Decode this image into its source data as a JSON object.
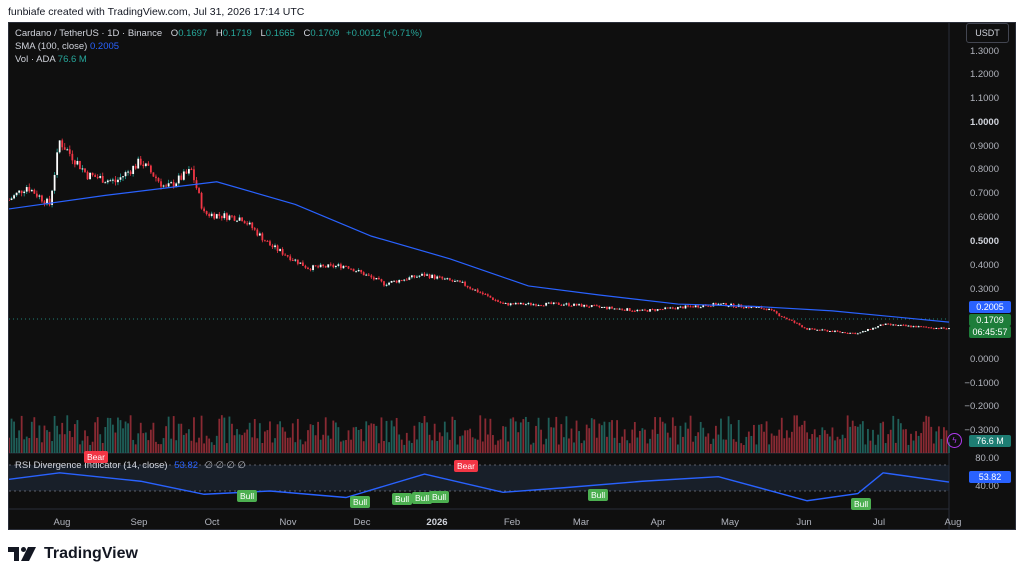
{
  "header": {
    "text": "funbiafe created with TradingView.com, Jul 31, 2026 17:14 UTC"
  },
  "legend": {
    "symbol": "Cardano / TetherUS · 1D · Binance",
    "open_label": "O",
    "open": "0.1697",
    "high_label": "H",
    "high": "0.1719",
    "low_label": "L",
    "low": "0.1665",
    "close_label": "C",
    "close": "0.1709",
    "change": "+0.0012 (+0.71%)",
    "sma_label": "SMA (100, close)",
    "sma_value": "0.2005",
    "vol_label": "Vol · ADA",
    "vol_value": "76.6 M"
  },
  "currency_button": "USDT",
  "price_axis": [
    "1.3000",
    "1.2000",
    "1.1000",
    "1.0000",
    "0.9000",
    "0.8000",
    "0.7000",
    "0.6000",
    "0.5000",
    "0.4000",
    "0.3000",
    "0.0000",
    "−0.1000",
    "−0.2000",
    "−0.3000"
  ],
  "price_labels": {
    "sma": "0.2005",
    "last_price": "0.1709",
    "countdown": "06:45:57",
    "volume": "76.6 M"
  },
  "rsi": {
    "label": "RSI Divergence Indicator (14, close)",
    "value": "53.82",
    "na": "∅ ∅ ∅ ∅",
    "axis": [
      "80.00",
      "40.00"
    ],
    "current": "53.82"
  },
  "x_axis": [
    "Aug",
    "Sep",
    "Oct",
    "Nov",
    "Dec",
    "2026",
    "Feb",
    "Mar",
    "Apr",
    "May",
    "Jun",
    "Jul",
    "Aug"
  ],
  "divergences": [
    {
      "type": "bear",
      "text": "Bear"
    },
    {
      "type": "bull",
      "text": "Bull"
    },
    {
      "type": "bull",
      "text": "Bull"
    },
    {
      "type": "bull",
      "text": "Bull"
    },
    {
      "type": "bull",
      "text": "Bull"
    },
    {
      "type": "bull",
      "text": "Bull"
    },
    {
      "type": "bear",
      "text": "Bear"
    },
    {
      "type": "bull",
      "text": "Bull"
    },
    {
      "type": "bull",
      "text": "Bull"
    }
  ],
  "brand": "TradingView",
  "colors": {
    "up": "#26a69a",
    "down": "#f23645",
    "sma": "#2962ff",
    "rsi": "#2962ff",
    "bg": "#0f0f0f"
  },
  "chart_data": {
    "type": "candlestick",
    "symbol": "ADAUSDT",
    "interval": "1D",
    "x_range": [
      "2025-07-25",
      "2026-07-31"
    ],
    "price_close_approx": [
      {
        "date": "2025-07-25",
        "close": 0.74
      },
      {
        "date": "2025-08-01",
        "close": 0.8
      },
      {
        "date": "2025-08-10",
        "close": 0.72
      },
      {
        "date": "2025-08-14",
        "close": 1.0
      },
      {
        "date": "2025-08-25",
        "close": 0.85
      },
      {
        "date": "2025-09-05",
        "close": 0.82
      },
      {
        "date": "2025-09-15",
        "close": 0.91
      },
      {
        "date": "2025-09-25",
        "close": 0.79
      },
      {
        "date": "2025-10-05",
        "close": 0.87
      },
      {
        "date": "2025-10-10",
        "close": 0.68
      },
      {
        "date": "2025-10-25",
        "close": 0.66
      },
      {
        "date": "2025-11-05",
        "close": 0.54
      },
      {
        "date": "2025-11-20",
        "close": 0.44
      },
      {
        "date": "2025-12-05",
        "close": 0.45
      },
      {
        "date": "2025-12-20",
        "close": 0.37
      },
      {
        "date": "2026-01-05",
        "close": 0.41
      },
      {
        "date": "2026-01-20",
        "close": 0.37
      },
      {
        "date": "2026-02-05",
        "close": 0.28
      },
      {
        "date": "2026-03-01",
        "close": 0.28
      },
      {
        "date": "2026-04-01",
        "close": 0.25
      },
      {
        "date": "2026-05-01",
        "close": 0.28
      },
      {
        "date": "2026-05-20",
        "close": 0.26
      },
      {
        "date": "2026-06-05",
        "close": 0.17
      },
      {
        "date": "2026-06-25",
        "close": 0.15
      },
      {
        "date": "2026-07-05",
        "close": 0.19
      },
      {
        "date": "2026-07-31",
        "close": 0.1709
      }
    ],
    "sma_100_approx": [
      {
        "date": "2025-07-25",
        "value": 0.7
      },
      {
        "date": "2025-09-01",
        "value": 0.76
      },
      {
        "date": "2025-10-15",
        "value": 0.82
      },
      {
        "date": "2025-11-15",
        "value": 0.72
      },
      {
        "date": "2025-12-15",
        "value": 0.58
      },
      {
        "date": "2026-01-15",
        "value": 0.48
      },
      {
        "date": "2026-02-15",
        "value": 0.36
      },
      {
        "date": "2026-03-15",
        "value": 0.32
      },
      {
        "date": "2026-04-15",
        "value": 0.28
      },
      {
        "date": "2026-05-15",
        "value": 0.27
      },
      {
        "date": "2026-06-15",
        "value": 0.25
      },
      {
        "date": "2026-07-31",
        "value": 0.2005
      }
    ],
    "rsi_approx": [
      {
        "date": "2025-07-25",
        "value": 58
      },
      {
        "date": "2025-08-14",
        "value": 68
      },
      {
        "date": "2025-09-15",
        "value": 55
      },
      {
        "date": "2025-10-10",
        "value": 35
      },
      {
        "date": "2025-11-05",
        "value": 40
      },
      {
        "date": "2025-12-05",
        "value": 30
      },
      {
        "date": "2026-01-05",
        "value": 66
      },
      {
        "date": "2026-02-05",
        "value": 38
      },
      {
        "date": "2026-03-01",
        "value": 45
      },
      {
        "date": "2026-04-01",
        "value": 55
      },
      {
        "date": "2026-05-01",
        "value": 62
      },
      {
        "date": "2026-06-05",
        "value": 25
      },
      {
        "date": "2026-06-25",
        "value": 36
      },
      {
        "date": "2026-07-05",
        "value": 68
      },
      {
        "date": "2026-07-31",
        "value": 53.82
      }
    ]
  }
}
